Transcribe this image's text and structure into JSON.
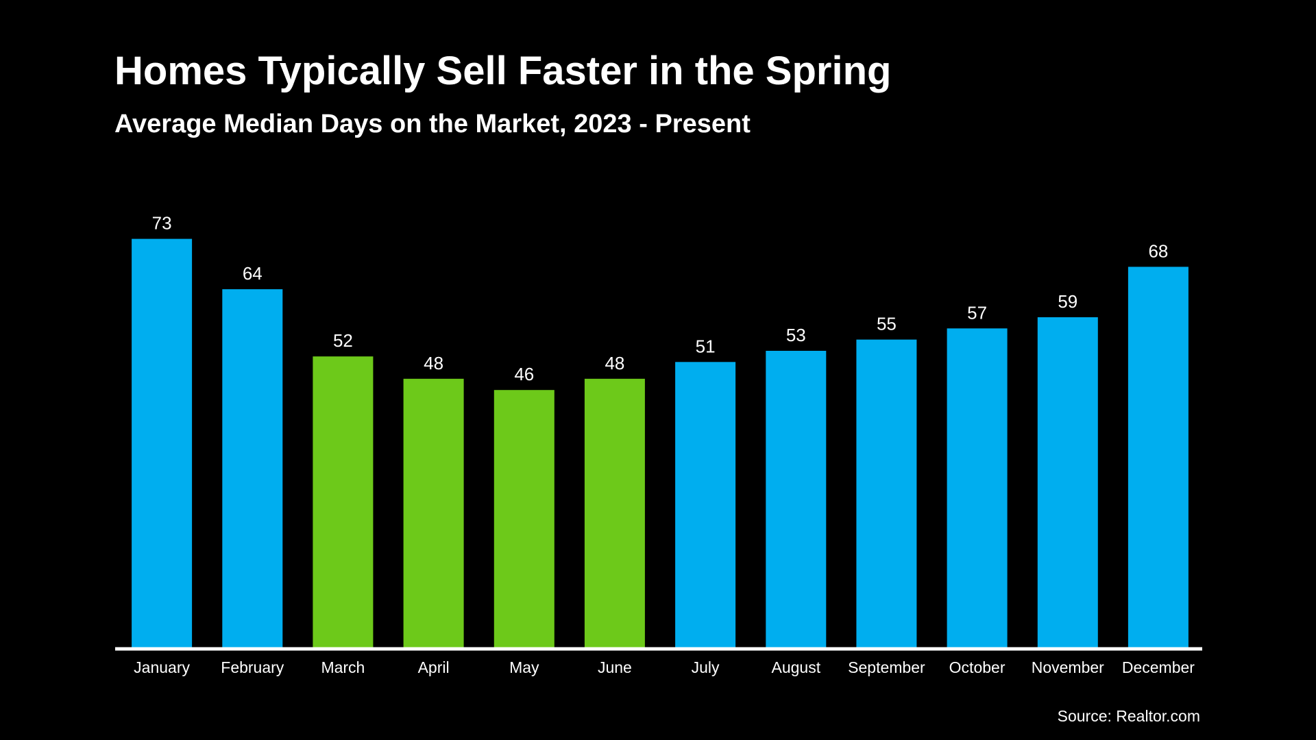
{
  "chart_data": {
    "type": "bar",
    "title": "Homes Typically Sell Faster in the Spring",
    "subtitle": "Average Median Days on the Market, 2023 - Present",
    "source": "Source: Realtor.com",
    "categories": [
      "January",
      "February",
      "March",
      "April",
      "May",
      "June",
      "July",
      "August",
      "September",
      "October",
      "November",
      "December"
    ],
    "values": [
      73,
      64,
      52,
      48,
      46,
      48,
      51,
      53,
      55,
      57,
      59,
      68
    ],
    "bar_colors": [
      "#00aeef",
      "#00aeef",
      "#6dc91a",
      "#6dc91a",
      "#6dc91a",
      "#6dc91a",
      "#00aeef",
      "#00aeef",
      "#00aeef",
      "#00aeef",
      "#00aeef",
      "#00aeef"
    ],
    "data_labels": true,
    "grid": false,
    "legend": "none",
    "background_color": "#000000",
    "text_color": "#ffffff",
    "axis_color": "#ffffff"
  }
}
